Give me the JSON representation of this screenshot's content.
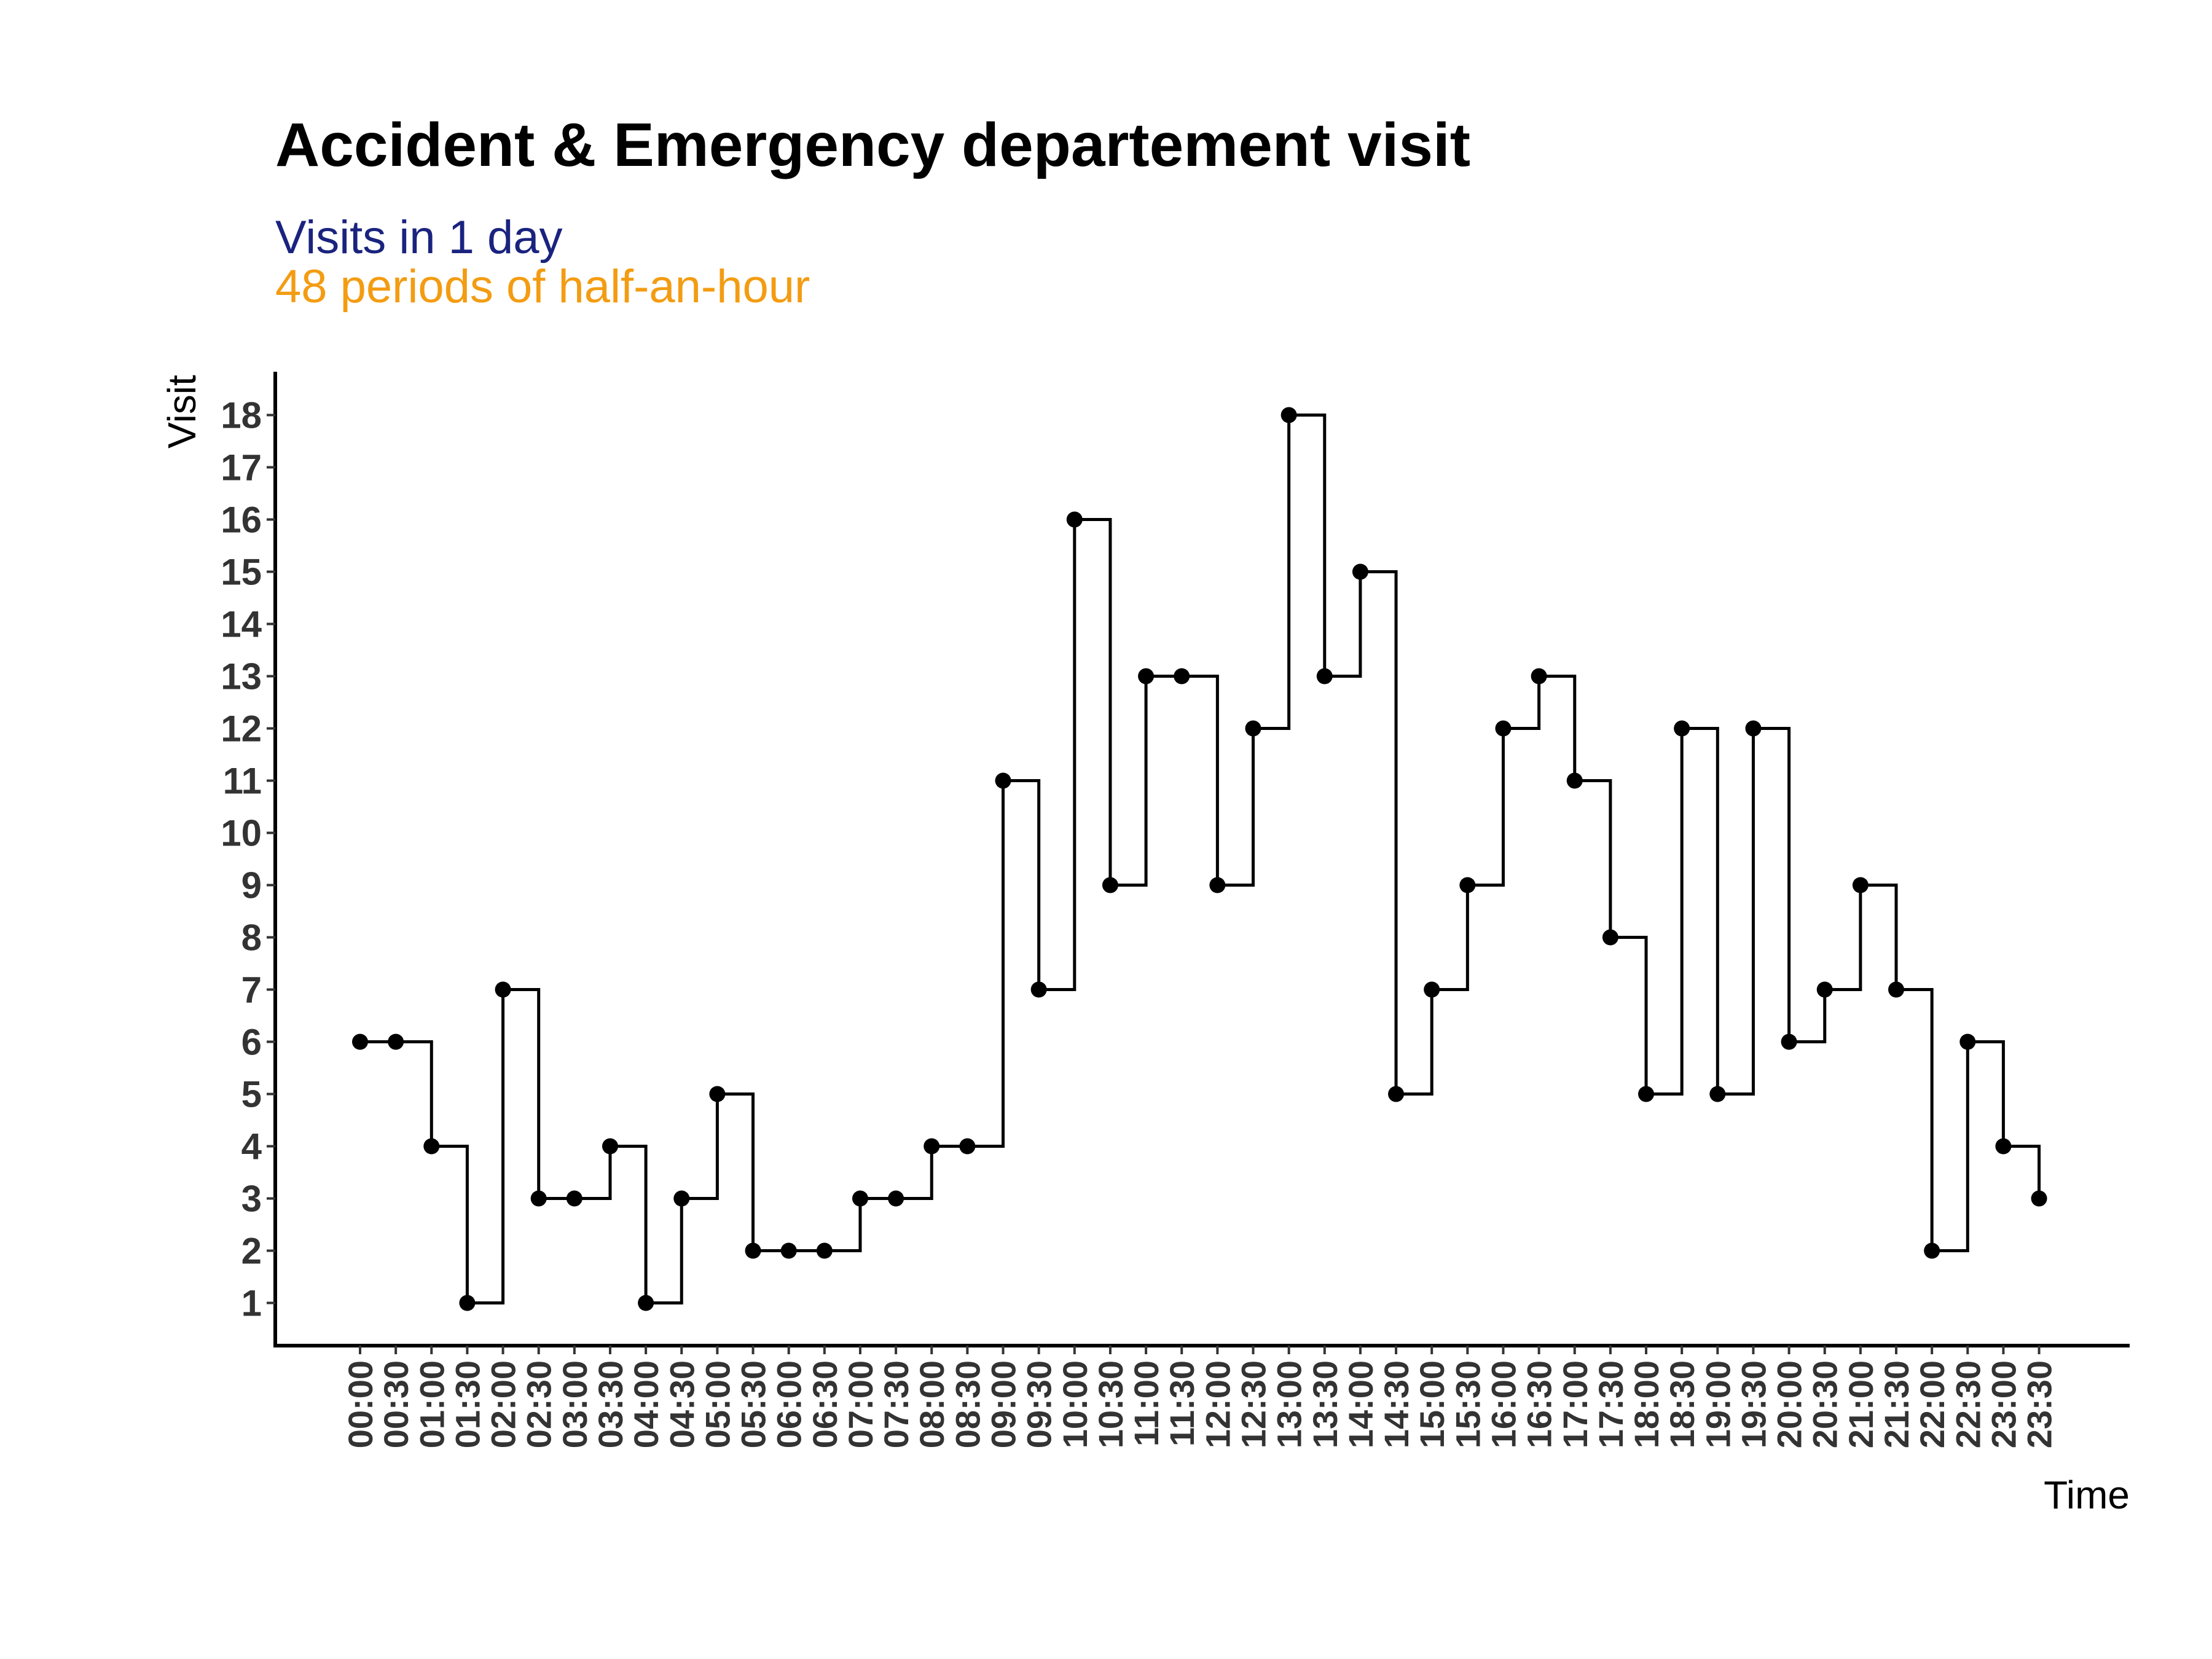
{
  "chart_data": {
    "type": "line",
    "style": "step",
    "title": "Accident & Emergency departement visit",
    "subtitle_lines": [
      {
        "text": "Visits in 1 day",
        "color": "#1a237e"
      },
      {
        "text": "48 periods of half-an-hour",
        "color": "#f39c12"
      }
    ],
    "xlabel": "Time",
    "ylabel": "Visit",
    "grid": false,
    "legend": "none",
    "ylim": [
      0.2,
      18.8
    ],
    "yticks": [
      1,
      2,
      3,
      4,
      5,
      6,
      7,
      8,
      9,
      10,
      11,
      12,
      13,
      14,
      15,
      16,
      17,
      18
    ],
    "x": [
      "00:00",
      "00:30",
      "01:00",
      "01:30",
      "02:00",
      "02:30",
      "03:00",
      "03:30",
      "04:00",
      "04:30",
      "05:00",
      "05:30",
      "06:00",
      "06:30",
      "07:00",
      "07:30",
      "08:00",
      "08:30",
      "09:00",
      "09:30",
      "10:00",
      "10:30",
      "11:00",
      "11:30",
      "12:00",
      "12:30",
      "13:00",
      "13:30",
      "14:00",
      "14:30",
      "15:00",
      "15:30",
      "16:00",
      "16:30",
      "17:00",
      "17:30",
      "18:00",
      "18:30",
      "19:00",
      "19:30",
      "20:00",
      "20:30",
      "21:00",
      "21:30",
      "22:00",
      "22:30",
      "23:00",
      "23:30"
    ],
    "values": [
      6,
      6,
      4,
      1,
      7,
      3,
      3,
      4,
      1,
      3,
      5,
      2,
      2,
      2,
      3,
      3,
      4,
      4,
      11,
      7,
      16,
      9,
      13,
      13,
      9,
      12,
      18,
      13,
      15,
      5,
      7,
      9,
      12,
      13,
      11,
      8,
      5,
      12,
      5,
      12,
      6,
      7,
      9,
      7,
      2,
      6,
      4,
      3
    ],
    "line_color": "#000000",
    "point_color": "#000000"
  }
}
